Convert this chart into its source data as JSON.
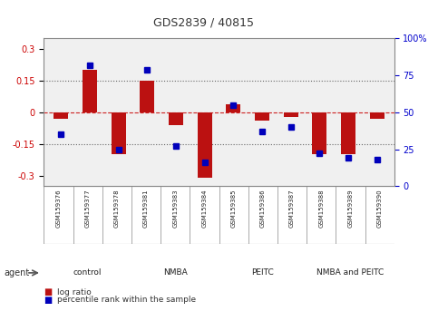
{
  "title": "GDS2839 / 40815",
  "samples": [
    "GSM159376",
    "GSM159377",
    "GSM159378",
    "GSM159381",
    "GSM159383",
    "GSM159384",
    "GSM159385",
    "GSM159386",
    "GSM159387",
    "GSM159388",
    "GSM159389",
    "GSM159390"
  ],
  "log_ratio": [
    -0.03,
    0.2,
    -0.2,
    0.15,
    -0.06,
    -0.31,
    0.04,
    -0.04,
    -0.02,
    -0.2,
    -0.2,
    -0.03
  ],
  "percentile_rank": [
    35,
    82,
    25,
    79,
    27,
    16,
    55,
    37,
    40,
    22,
    19,
    18
  ],
  "groups": [
    {
      "label": "control",
      "start": 0,
      "end": 3,
      "color": "#d4f5d4"
    },
    {
      "label": "NMBA",
      "start": 3,
      "end": 6,
      "color": "#90e090"
    },
    {
      "label": "PEITC",
      "start": 6,
      "end": 9,
      "color": "#60cc60"
    },
    {
      "label": "NMBA and PEITC",
      "start": 9,
      "end": 12,
      "color": "#44bb44"
    }
  ],
  "ylim_left": [
    -0.35,
    0.35
  ],
  "ylim_right": [
    0,
    100
  ],
  "yticks_left": [
    -0.3,
    -0.15,
    0,
    0.15,
    0.3
  ],
  "yticks_right": [
    0,
    25,
    50,
    75,
    100
  ],
  "ytick_labels_right": [
    "0",
    "25",
    "50",
    "75",
    "100%"
  ],
  "hlines_dotted": [
    -0.15,
    0.15
  ],
  "hline_zero": 0,
  "bar_color": "#bb1111",
  "dot_color": "#0000bb",
  "bar_width": 0.5,
  "background_color": "#ffffff",
  "plot_bg": "#f0f0f0",
  "left_label_color": "#cc0000",
  "right_label_color": "#0000cc",
  "agent_label": "agent",
  "legend_items": [
    "log ratio",
    "percentile rank within the sample"
  ]
}
